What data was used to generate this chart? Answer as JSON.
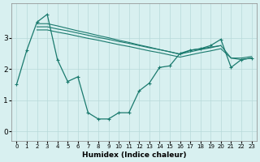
{
  "xlabel": "Humidex (Indice chaleur)",
  "bg_color": "#d8f0f0",
  "line_color": "#1a7a6e",
  "grid_major_color": "#b8dada",
  "grid_minor_color": "#c8eaea",
  "xlim": [
    -0.5,
    23.5
  ],
  "ylim": [
    -0.3,
    4.1
  ],
  "yticks": [
    0,
    1,
    2,
    3
  ],
  "xticks": [
    0,
    1,
    2,
    3,
    4,
    5,
    6,
    7,
    8,
    9,
    10,
    11,
    12,
    13,
    14,
    15,
    16,
    17,
    18,
    19,
    20,
    21,
    22,
    23
  ],
  "series0": [
    1.5,
    2.6,
    3.5,
    3.75,
    2.3,
    1.6,
    1.75,
    0.6,
    0.4,
    0.4,
    0.6,
    0.6,
    1.3,
    1.55,
    2.05,
    2.1,
    2.5,
    2.6,
    2.65,
    2.75,
    2.95,
    2.05,
    2.3,
    2.35
  ],
  "series1_x": [
    2,
    3,
    4,
    5,
    6,
    7,
    8,
    9,
    10,
    11,
    12,
    13,
    14,
    15,
    16,
    17,
    18,
    19,
    20
  ],
  "series1_y": [
    3.45,
    3.45,
    3.38,
    3.3,
    3.22,
    3.15,
    3.07,
    3.0,
    2.92,
    2.85,
    2.77,
    2.7,
    2.62,
    2.55,
    2.47,
    2.6,
    2.65,
    2.7,
    2.75
  ],
  "series2_x": [
    2,
    3,
    4,
    5,
    6,
    7,
    8,
    9,
    10,
    11,
    12,
    13,
    14,
    15,
    16,
    17,
    18,
    19,
    20,
    21,
    22,
    23
  ],
  "series2_y": [
    3.35,
    3.35,
    3.28,
    3.22,
    3.15,
    3.08,
    3.01,
    2.95,
    2.88,
    2.82,
    2.75,
    2.68,
    2.62,
    2.55,
    2.48,
    2.55,
    2.62,
    2.68,
    2.75,
    2.35,
    2.35,
    2.4
  ],
  "series3_x": [
    2,
    3,
    4,
    5,
    6,
    7,
    8,
    9,
    10,
    11,
    12,
    13,
    14,
    15,
    16,
    17,
    18,
    19,
    20,
    21,
    22,
    23
  ],
  "series3_y": [
    3.25,
    3.25,
    3.18,
    3.12,
    3.05,
    2.98,
    2.92,
    2.85,
    2.78,
    2.72,
    2.65,
    2.58,
    2.52,
    2.45,
    2.38,
    2.45,
    2.52,
    2.58,
    2.65,
    2.35,
    2.3,
    2.35
  ]
}
